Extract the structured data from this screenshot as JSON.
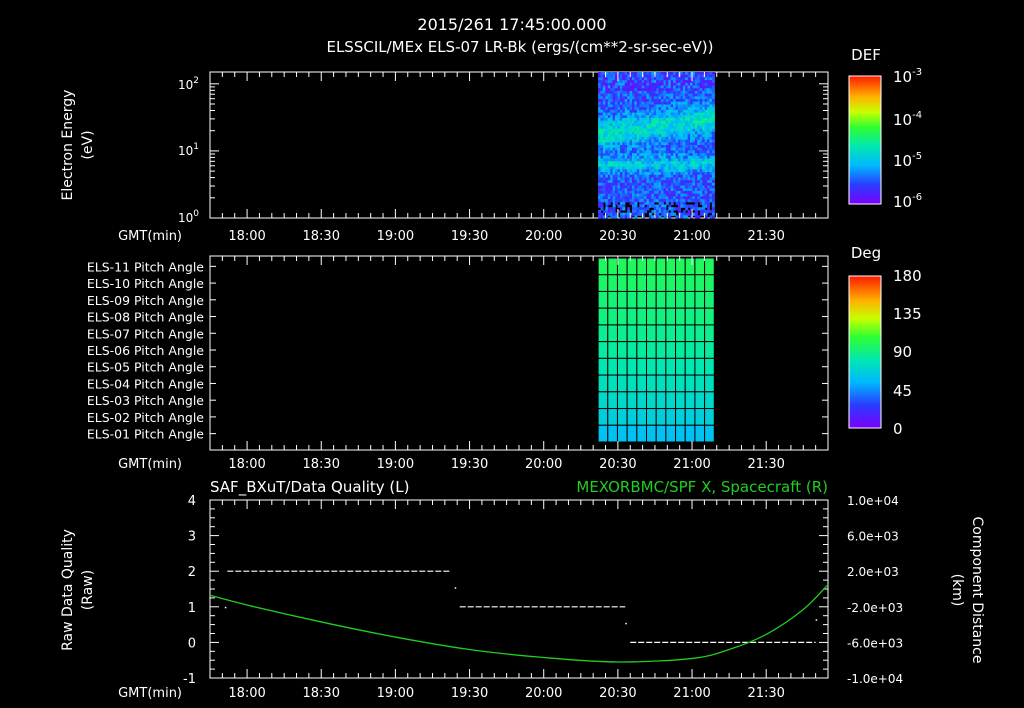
{
  "header": {
    "timestamp": "2015/261 17:45:00.000",
    "title": "ELSSCIL/MEx ELS-07 LR-Bk  (ergs/(cm**2-sr-sec-eV))"
  },
  "time_axis": {
    "label": "GMT(min)",
    "ticks": [
      "18:00",
      "18:30",
      "19:00",
      "19:30",
      "20:00",
      "20:30",
      "21:00",
      "21:30"
    ]
  },
  "chart_data": [
    {
      "type": "heatmap",
      "name": "energy-spectrogram",
      "ylabel": "Electron Energy",
      "yunits": "(eV)",
      "yscale": "log",
      "ylim": [
        1,
        150
      ],
      "yticks": [
        {
          "base": "10",
          "exp": "0"
        },
        {
          "base": "10",
          "exp": "1"
        },
        {
          "base": "10",
          "exp": "2"
        }
      ],
      "xlim": [
        "17:45",
        "21:55"
      ],
      "data_window": [
        "20:22",
        "21:09"
      ],
      "colorbar": {
        "title": "DEF",
        "scale": "log",
        "ticks": [
          {
            "base": "10",
            "exp": "-3"
          },
          {
            "base": "10",
            "exp": "-4"
          },
          {
            "base": "10",
            "exp": "-5"
          },
          {
            "base": "10",
            "exp": "-6"
          }
        ]
      }
    },
    {
      "type": "heatmap",
      "name": "pitch-angle",
      "rows": [
        "ELS-11 Pitch Angle",
        "ELS-10 Pitch Angle",
        "ELS-09 Pitch Angle",
        "ELS-08 Pitch Angle",
        "ELS-07 Pitch Angle",
        "ELS-06 Pitch Angle",
        "ELS-05 Pitch Angle",
        "ELS-04 Pitch Angle",
        "ELS-03 Pitch Angle",
        "ELS-02 Pitch Angle",
        "ELS-01 Pitch Angle"
      ],
      "row_values_deg": [
        96,
        94,
        91,
        89,
        86,
        83,
        80,
        76,
        72,
        67,
        60
      ],
      "xlim": [
        "17:45",
        "21:55"
      ],
      "data_window": [
        "20:22",
        "21:09"
      ],
      "colorbar": {
        "title": "Deg",
        "ticks": [
          "180",
          "135",
          "90",
          "45",
          "0"
        ],
        "range": [
          0,
          180
        ]
      }
    },
    {
      "type": "line",
      "name": "data-quality",
      "title_left": "SAF_BXuT/Data Quality (L)",
      "title_right": "MEXORBMC/SPF X, Spacecraft (R)",
      "ylabel_left": "Raw Data Quality",
      "ylabel_left_units": "(Raw)",
      "ylabel_right": "Component Distance",
      "ylabel_right_units": "(km)",
      "ylim_left": [
        -1,
        4
      ],
      "yticks_left": [
        "4",
        "3",
        "2",
        "1",
        "0",
        "-1"
      ],
      "ylim_right": [
        -10000,
        10000
      ],
      "yticks_right": [
        "1.0e+04",
        "6.0e+03",
        "2.0e+03",
        "-2.0e+03",
        "-6.0e+03",
        "-1.0e+04"
      ],
      "xlim": [
        "17:45",
        "21:55"
      ],
      "series": [
        {
          "color": "#ffffff",
          "axis": "left",
          "style": "dashed",
          "segments": [
            {
              "x": [
                "17:52",
                "19:22"
              ],
              "y": 2
            },
            {
              "x": [
                "19:26",
                "20:33"
              ],
              "y": 1
            },
            {
              "x": [
                "20:35",
                "21:50"
              ],
              "y": 0
            }
          ]
        },
        {
          "color": "#22cc22",
          "axis": "right",
          "x": [
            "17:45",
            "18:00",
            "18:30",
            "19:00",
            "19:30",
            "20:00",
            "20:30",
            "21:00",
            "21:15",
            "21:30",
            "21:45",
            "21:55"
          ],
          "y": [
            -700,
            -1800,
            -3700,
            -5400,
            -6800,
            -7700,
            -8200,
            -7800,
            -6800,
            -5100,
            -2300,
            500
          ]
        }
      ]
    }
  ]
}
